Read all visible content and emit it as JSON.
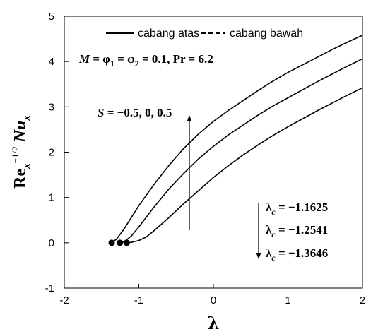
{
  "chart_data": {
    "type": "line",
    "title": "",
    "xlabel": "λ",
    "ylabel": "Re_x^{-1/2} Nu_x",
    "xlim": [
      -2,
      2
    ],
    "ylim": [
      -1,
      5
    ],
    "xticks": [
      "-2",
      "-1",
      "0",
      "1",
      "2"
    ],
    "yticks": [
      "-1",
      "0",
      "1",
      "2",
      "3",
      "4",
      "5"
    ],
    "grid": false,
    "legend": {
      "placement": "top",
      "entries": [
        {
          "label": "cabang atas",
          "style": "solid"
        },
        {
          "label": "cabang bawah",
          "style": "dashed"
        }
      ]
    },
    "params_text": "M = φ1 = φ2 = 0.1, Pr = 6.2",
    "arrow_label": "S = −0.5, 0, 0.5",
    "critical_labels": [
      "λc = −1.1625",
      "λc = −1.2541",
      "λc = −1.3646"
    ],
    "series": [
      {
        "branch": "cabang atas",
        "S": 0.5,
        "points": [
          [
            -1.3646,
            0.0
          ],
          [
            -1.3,
            0.08
          ],
          [
            -1.2,
            0.3
          ],
          [
            -1.0,
            0.82
          ],
          [
            -0.8,
            1.28
          ],
          [
            -0.6,
            1.7
          ],
          [
            -0.4,
            2.08
          ],
          [
            -0.2,
            2.4
          ],
          [
            0.0,
            2.68
          ],
          [
            0.2,
            2.92
          ],
          [
            0.4,
            3.14
          ],
          [
            0.6,
            3.36
          ],
          [
            0.8,
            3.57
          ],
          [
            1.0,
            3.76
          ],
          [
            1.2,
            3.93
          ],
          [
            1.4,
            4.1
          ],
          [
            1.6,
            4.27
          ],
          [
            1.8,
            4.43
          ],
          [
            2.0,
            4.58
          ]
        ]
      },
      {
        "branch": "cabang atas",
        "S": 0.0,
        "points": [
          [
            -1.2541,
            0.0
          ],
          [
            -1.2,
            0.02
          ],
          [
            -1.1,
            0.15
          ],
          [
            -1.0,
            0.35
          ],
          [
            -0.8,
            0.78
          ],
          [
            -0.6,
            1.18
          ],
          [
            -0.4,
            1.53
          ],
          [
            -0.2,
            1.85
          ],
          [
            0.0,
            2.13
          ],
          [
            0.2,
            2.38
          ],
          [
            0.4,
            2.6
          ],
          [
            0.6,
            2.82
          ],
          [
            0.8,
            3.02
          ],
          [
            1.0,
            3.2
          ],
          [
            1.2,
            3.38
          ],
          [
            1.4,
            3.56
          ],
          [
            1.6,
            3.73
          ],
          [
            1.8,
            3.9
          ],
          [
            2.0,
            4.06
          ]
        ]
      },
      {
        "branch": "cabang atas",
        "S": -0.5,
        "points": [
          [
            -1.1625,
            0.0
          ],
          [
            -1.1,
            0.01
          ],
          [
            -1.0,
            0.05
          ],
          [
            -0.9,
            0.13
          ],
          [
            -0.8,
            0.26
          ],
          [
            -0.6,
            0.55
          ],
          [
            -0.4,
            0.86
          ],
          [
            -0.2,
            1.15
          ],
          [
            0.0,
            1.44
          ],
          [
            0.2,
            1.7
          ],
          [
            0.4,
            1.94
          ],
          [
            0.6,
            2.16
          ],
          [
            0.8,
            2.37
          ],
          [
            1.0,
            2.56
          ],
          [
            1.2,
            2.74
          ],
          [
            1.4,
            2.92
          ],
          [
            1.6,
            3.09
          ],
          [
            1.8,
            3.26
          ],
          [
            2.0,
            3.42
          ]
        ]
      }
    ],
    "critical_points": [
      {
        "x": -1.3646,
        "y": 0.0
      },
      {
        "x": -1.2541,
        "y": 0.0
      },
      {
        "x": -1.1625,
        "y": 0.0
      }
    ]
  }
}
